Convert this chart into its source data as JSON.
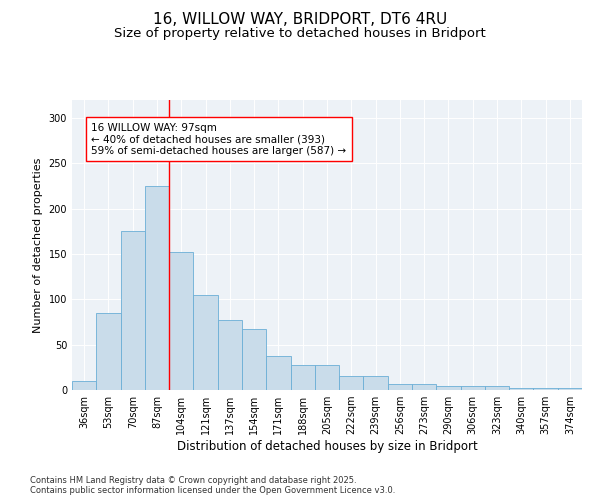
{
  "title": "16, WILLOW WAY, BRIDPORT, DT6 4RU",
  "subtitle": "Size of property relative to detached houses in Bridport",
  "xlabel": "Distribution of detached houses by size in Bridport",
  "ylabel": "Number of detached properties",
  "categories": [
    "36sqm",
    "53sqm",
    "70sqm",
    "87sqm",
    "104sqm",
    "121sqm",
    "137sqm",
    "154sqm",
    "171sqm",
    "188sqm",
    "205sqm",
    "222sqm",
    "239sqm",
    "256sqm",
    "273sqm",
    "290sqm",
    "306sqm",
    "323sqm",
    "340sqm",
    "357sqm",
    "374sqm"
  ],
  "values": [
    10,
    85,
    175,
    225,
    152,
    105,
    77,
    67,
    37,
    28,
    28,
    15,
    15,
    7,
    7,
    4,
    4,
    4,
    2,
    2,
    2
  ],
  "bar_color": "#c9dcea",
  "bar_edge_color": "#6aaed6",
  "red_line_x": 3.5,
  "annotation_text": "16 WILLOW WAY: 97sqm\n← 40% of detached houses are smaller (393)\n59% of semi-detached houses are larger (587) →",
  "ylim": [
    0,
    320
  ],
  "yticks": [
    0,
    50,
    100,
    150,
    200,
    250,
    300
  ],
  "background_color": "#edf2f7",
  "footer": "Contains HM Land Registry data © Crown copyright and database right 2025.\nContains public sector information licensed under the Open Government Licence v3.0.",
  "title_fontsize": 11,
  "subtitle_fontsize": 9.5,
  "xlabel_fontsize": 8.5,
  "ylabel_fontsize": 8,
  "tick_fontsize": 7,
  "annotation_fontsize": 7.5,
  "footer_fontsize": 6
}
